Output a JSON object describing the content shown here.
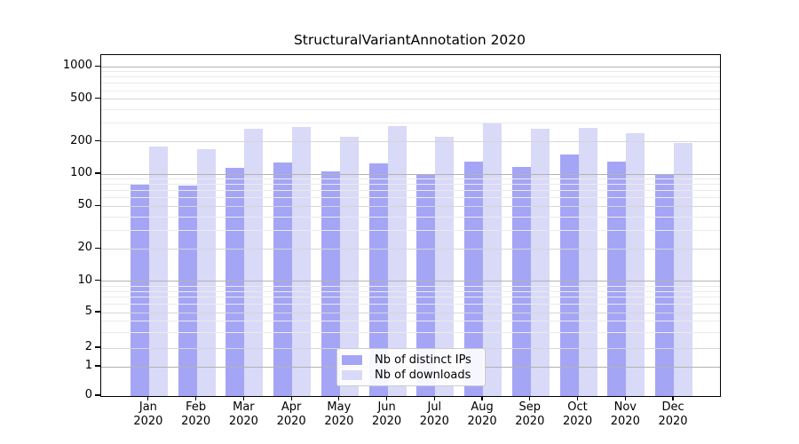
{
  "title": "StructuralVariantAnnotation 2020",
  "colors": {
    "ips": "#a5a5f5",
    "downloads": "#d9d9f8",
    "grid_major": "#b2b2b2",
    "grid_mid": "#d6d6d6",
    "grid_minor": "#ebebeb",
    "spine": "#000000",
    "legend_border": "#cccccc"
  },
  "legend": {
    "items": [
      {
        "key": "ips",
        "label": "Nb of distinct IPs"
      },
      {
        "key": "downloads",
        "label": "Nb of downloads"
      }
    ]
  },
  "axes": {
    "y_ticks": [
      0,
      1,
      2,
      5,
      10,
      20,
      50,
      100,
      200,
      500,
      1000
    ],
    "x_months": [
      "Jan",
      "Feb",
      "Mar",
      "Apr",
      "May",
      "Jun",
      "Jul",
      "Aug",
      "Sep",
      "Oct",
      "Nov",
      "Dec"
    ],
    "x_year": "2020"
  },
  "chart_data": {
    "type": "bar",
    "title": "StructuralVariantAnnotation 2020",
    "categories": [
      "Jan 2020",
      "Feb 2020",
      "Mar 2020",
      "Apr 2020",
      "May 2020",
      "Jun 2020",
      "Jul 2020",
      "Aug 2020",
      "Sep 2020",
      "Oct 2020",
      "Nov 2020",
      "Dec 2020"
    ],
    "series": [
      {
        "name": "Nb of distinct IPs",
        "color": "#a5a5f5",
        "values": [
          81,
          78,
          114,
          129,
          105,
          125,
          100,
          131,
          117,
          152,
          131,
          100
        ]
      },
      {
        "name": "Nb of downloads",
        "color": "#d9d9f8",
        "values": [
          180,
          171,
          263,
          276,
          224,
          280,
          224,
          304,
          265,
          268,
          242,
          195
        ]
      }
    ],
    "xlabel": "",
    "ylabel": "",
    "y_scale": "symlog",
    "y_ticks": [
      0,
      1,
      2,
      5,
      10,
      20,
      50,
      100,
      200,
      500,
      1000
    ],
    "ylim": [
      0,
      1300
    ],
    "grid": true,
    "grid_over_bars": true,
    "legend_position": "lower center"
  }
}
